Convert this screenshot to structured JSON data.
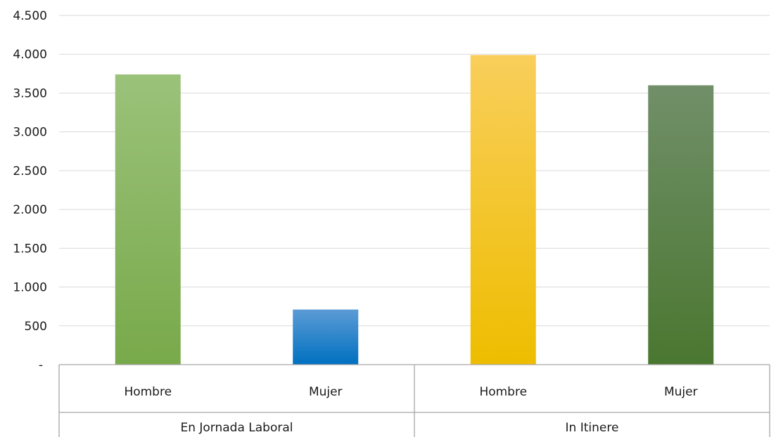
{
  "chart_data": {
    "type": "bar",
    "groups": [
      {
        "label": "En Jornada Laboral",
        "bars": [
          {
            "label": "Hombre",
            "value": 3740,
            "color_top": "#9bc27a",
            "color_bottom": "#78a94a"
          },
          {
            "label": "Mujer",
            "value": 710,
            "color_top": "#5b9bd5",
            "color_bottom": "#0070c0"
          }
        ]
      },
      {
        "label": "In Itinere",
        "bars": [
          {
            "label": "Hombre",
            "value": 3990,
            "color_top": "#f9ce5b",
            "color_bottom": "#eebd00"
          },
          {
            "label": "Mujer",
            "value": 3600,
            "color_top": "#718f69",
            "color_bottom": "#4a7730"
          }
        ]
      }
    ],
    "yticks": [
      {
        "value": 0,
        "label": "-"
      },
      {
        "value": 500,
        "label": "500"
      },
      {
        "value": 1000,
        "label": "1.000"
      },
      {
        "value": 1500,
        "label": "1.500"
      },
      {
        "value": 2000,
        "label": "2.000"
      },
      {
        "value": 2500,
        "label": "2.500"
      },
      {
        "value": 3000,
        "label": "3.000"
      },
      {
        "value": 3500,
        "label": "3.500"
      },
      {
        "value": 4000,
        "label": "4.000"
      },
      {
        "value": 4500,
        "label": "4.500"
      }
    ],
    "ylim": [
      0,
      4500
    ],
    "grid": true,
    "legend": "none",
    "colors": {
      "grid": "#d9d9d9",
      "axis": "#a6a6a6",
      "text": "#1a1a1a"
    }
  }
}
